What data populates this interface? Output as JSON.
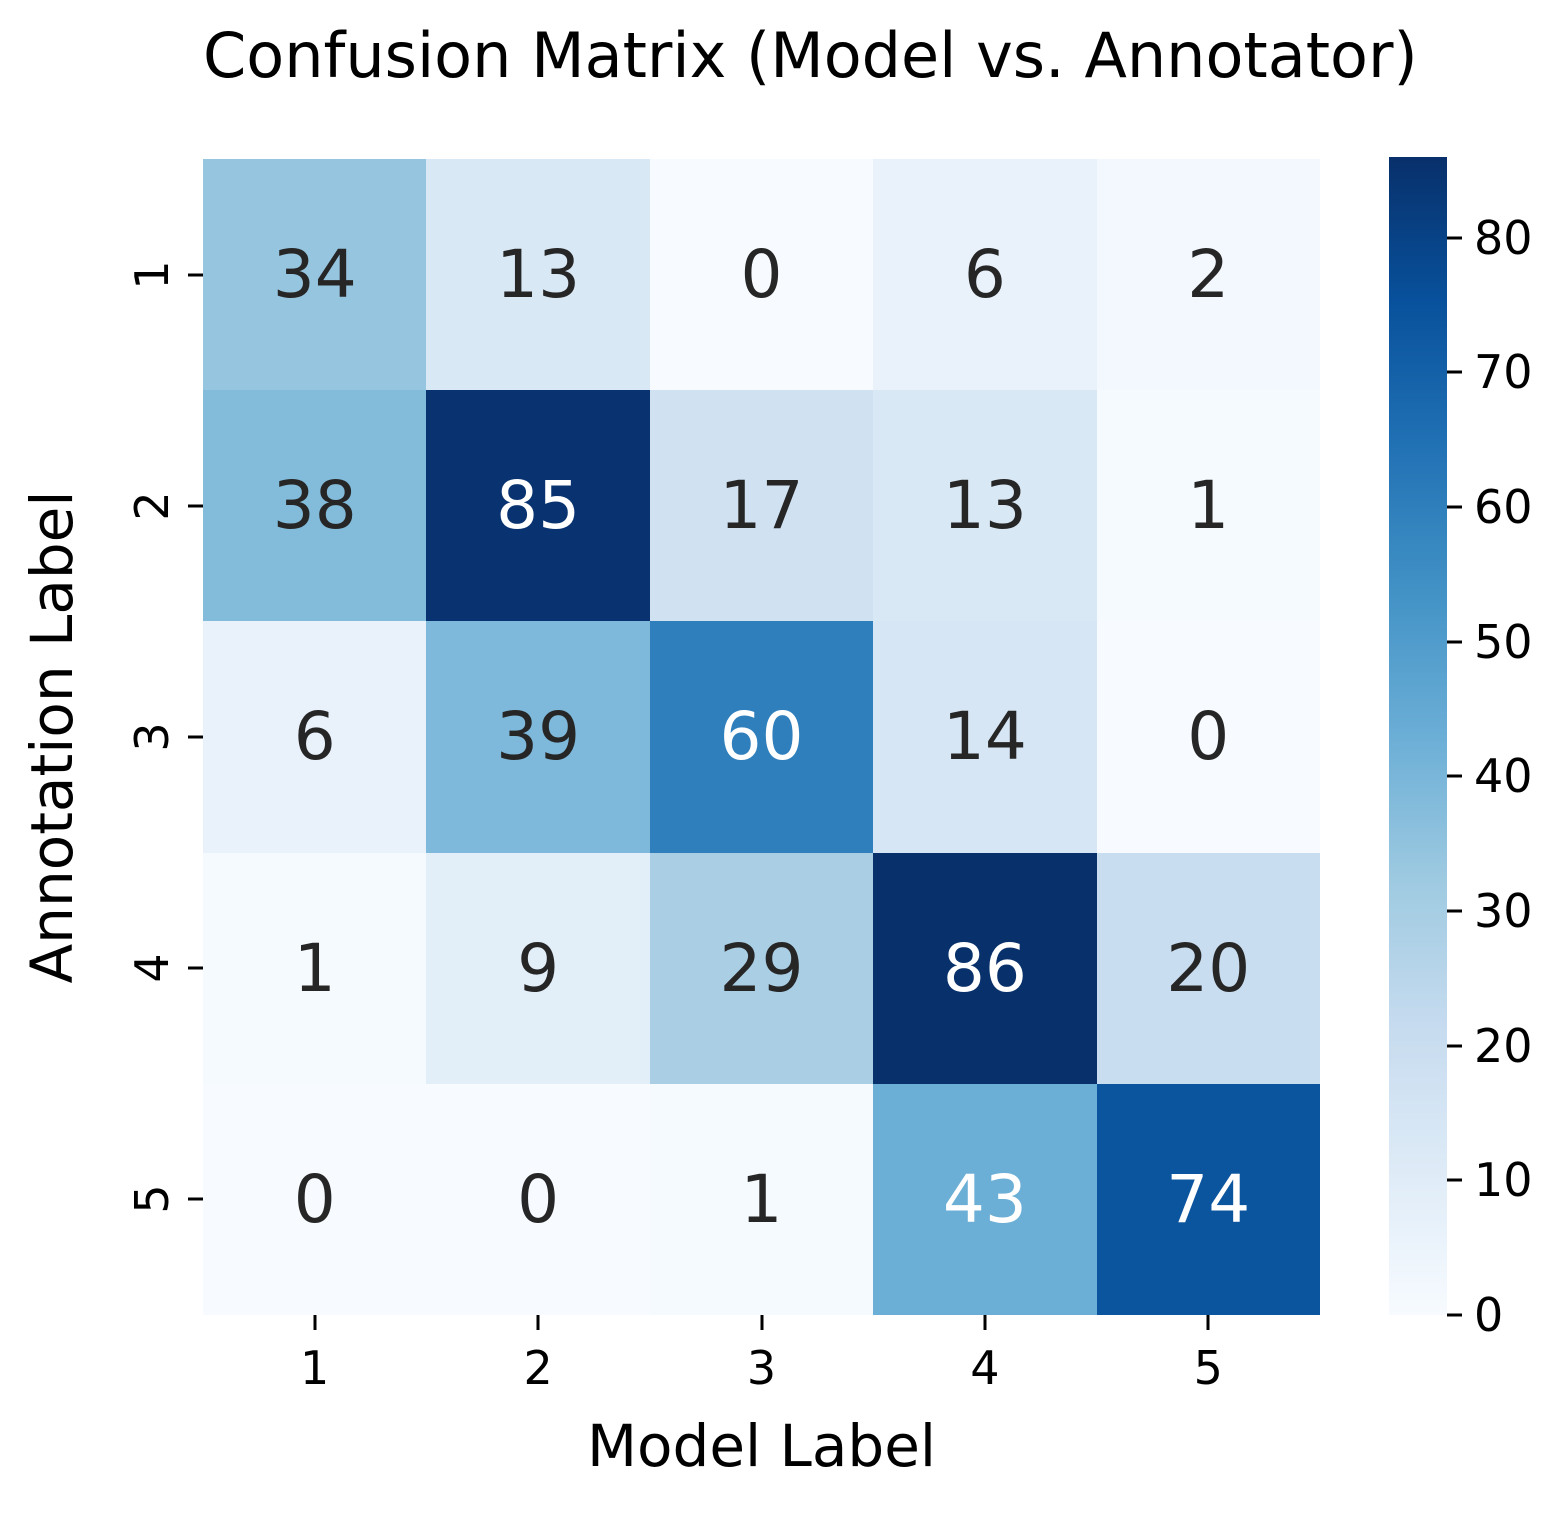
{
  "figure_title": "Confusion Matrix (Model vs. Annotator)",
  "chart_data": {
    "type": "heatmap",
    "title": "Confusion Matrix (Model vs. Annotator)",
    "xlabel": "Model Label",
    "ylabel": "Annotation Label",
    "x_categories": [
      "1",
      "2",
      "3",
      "4",
      "5"
    ],
    "y_categories": [
      "1",
      "2",
      "3",
      "4",
      "5"
    ],
    "values": [
      [
        34,
        13,
        0,
        6,
        2
      ],
      [
        38,
        85,
        17,
        13,
        1
      ],
      [
        6,
        39,
        60,
        14,
        0
      ],
      [
        1,
        9,
        29,
        86,
        20
      ],
      [
        0,
        0,
        1,
        43,
        74
      ]
    ],
    "cell_colors": [
      [
        "#96c5df",
        "#d9e8f5",
        "#f7fbff",
        "#e9f2fb",
        "#f2f8fe"
      ],
      [
        "#83bbdb",
        "#083370",
        "#d0e2f2",
        "#d9e8f5",
        "#f5fafe"
      ],
      [
        "#e9f2fb",
        "#7eb8da",
        "#2f7fbc",
        "#d7e6f5",
        "#f7fbff"
      ],
      [
        "#f5fafe",
        "#e2eef8",
        "#aacfe5",
        "#08306b",
        "#c9ddf0"
      ],
      [
        "#f7fbff",
        "#f7fbff",
        "#f5fafe",
        "#6baed6",
        "#0b559f"
      ]
    ],
    "cell_text_colors": [
      [
        "#262626",
        "#262626",
        "#262626",
        "#262626",
        "#262626"
      ],
      [
        "#262626",
        "#ffffff",
        "#262626",
        "#262626",
        "#262626"
      ],
      [
        "#262626",
        "#262626",
        "#ffffff",
        "#262626",
        "#262626"
      ],
      [
        "#262626",
        "#262626",
        "#262626",
        "#ffffff",
        "#262626"
      ],
      [
        "#262626",
        "#262626",
        "#262626",
        "#ffffff",
        "#ffffff"
      ]
    ],
    "colormap": "Blues",
    "vmin": 0,
    "vmax": 86,
    "legend_position": "right",
    "grid": false,
    "colorbar": {
      "ticks": [
        0,
        10,
        20,
        30,
        40,
        50,
        60,
        70,
        80
      ],
      "gradient_stops_top_to_bottom": [
        "#08306b",
        "#08519c",
        "#2171b5",
        "#4292c6",
        "#6baed6",
        "#9ecae1",
        "#c6dbef",
        "#deebf7",
        "#f7fbff"
      ]
    },
    "annot_colors": {
      "dark": "#262626",
      "light": "#ffffff"
    }
  }
}
